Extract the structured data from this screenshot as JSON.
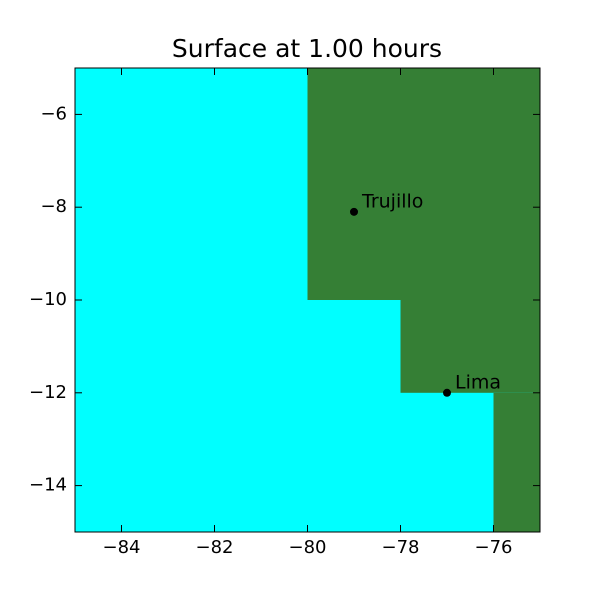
{
  "chart_data": {
    "type": "scatter",
    "title": "Surface at 1.00 hours",
    "xlim": [
      -85,
      -75
    ],
    "ylim": [
      -15,
      -5
    ],
    "xticks": [
      {
        "value": -84,
        "label": "−84"
      },
      {
        "value": -82,
        "label": "−82"
      },
      {
        "value": -80,
        "label": "−80"
      },
      {
        "value": -78,
        "label": "−78"
      },
      {
        "value": -76,
        "label": "−76"
      }
    ],
    "yticks": [
      {
        "value": -6,
        "label": "−6"
      },
      {
        "value": -8,
        "label": "−8"
      },
      {
        "value": -10,
        "label": "−10"
      },
      {
        "value": -12,
        "label": "−12"
      },
      {
        "value": -14,
        "label": "−14"
      }
    ],
    "background_color": "#00ffff",
    "land_color": "#357f35",
    "marker_color": "#000000",
    "land": [
      [
        -80,
        -75,
        -10,
        -5
      ],
      [
        -78,
        -75,
        -12,
        -10
      ],
      [
        -76,
        -75,
        -15,
        -12
      ]
    ],
    "points": [
      {
        "label": "Trujillo",
        "x": -79,
        "y": -8.1
      },
      {
        "label": "Lima",
        "x": -77,
        "y": -12
      }
    ]
  }
}
